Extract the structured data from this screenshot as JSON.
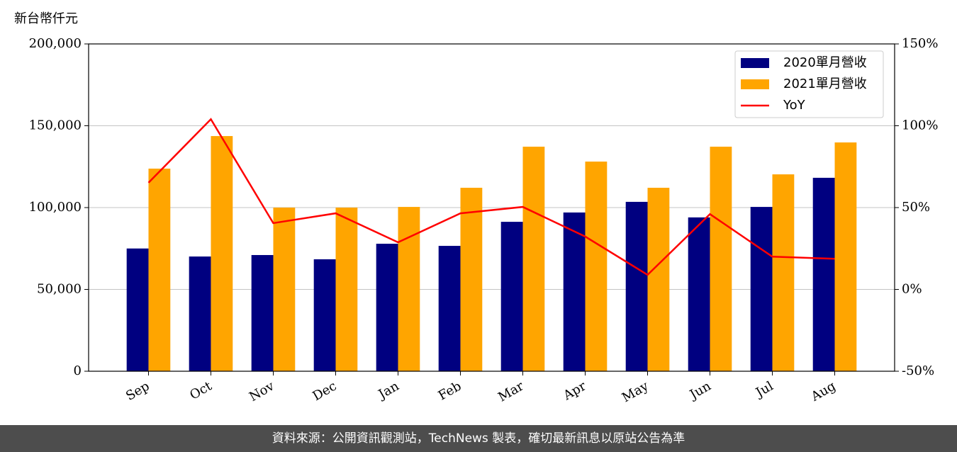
{
  "chart_data": {
    "type": "bar",
    "y_label": "新台幣仟元",
    "categories": [
      "Sep",
      "Oct",
      "Nov",
      "Dec",
      "Jan",
      "Feb",
      "Mar",
      "Apr",
      "May",
      "Jun",
      "Jul",
      "Aug"
    ],
    "series": [
      {
        "name": "2020單月營收",
        "color": "#000080",
        "type": "bar",
        "axis": "y",
        "values": [
          75000,
          70100,
          71000,
          68400,
          77900,
          76600,
          91300,
          97000,
          103500,
          94000,
          100400,
          118200
        ]
      },
      {
        "name": "2021單月營收",
        "color": "#ffa500",
        "type": "bar",
        "axis": "y",
        "values": [
          123800,
          143700,
          100000,
          100000,
          100400,
          112100,
          137200,
          128100,
          112100,
          137200,
          120300,
          139800
        ]
      },
      {
        "name": "YoY",
        "color": "#ff0000",
        "type": "line",
        "axis": "y2",
        "values": [
          65.2,
          104,
          40.5,
          46.5,
          28.8,
          46.5,
          50.4,
          32.3,
          8.9,
          46,
          20,
          18.7
        ]
      }
    ],
    "ylim": [
      0,
      200000
    ],
    "yticks": [
      0,
      {
        "value": 50000,
        "label": "50,000"
      },
      {
        "value": 100000,
        "label": "100,000"
      },
      {
        "value": 150000,
        "label": "150,000"
      },
      {
        "value": 200000,
        "label": "200,000"
      }
    ],
    "y2lim": [
      -50,
      150
    ],
    "y2ticks": [
      {
        "value": -50,
        "label": "-50%"
      },
      {
        "value": 0,
        "label": "0%"
      },
      {
        "value": 50,
        "label": "50%"
      },
      {
        "value": 100,
        "label": "100%"
      },
      {
        "value": 150,
        "label": "150%"
      }
    ],
    "grid": true,
    "legend": "upper right",
    "footer": "資料來源：公開資訊觀測站，TechNews 製表，確切最新訊息以原站公告為準"
  }
}
